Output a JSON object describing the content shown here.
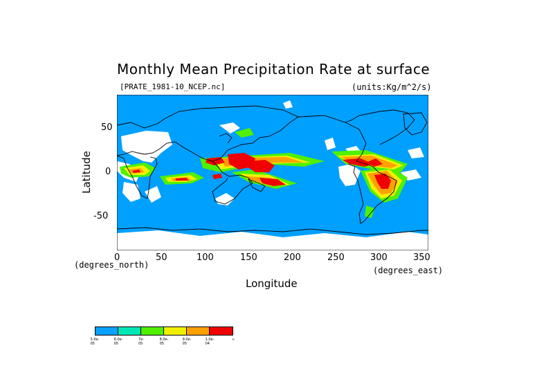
{
  "title": "Monthly Mean Precipitation Rate at surface",
  "subtitle": "[PRATE_1981-10_NCEP.nc]",
  "units": "(units:Kg/m^2/s)",
  "axes": {
    "xlabel": "Longitude",
    "ylabel": "Latitude",
    "x_unit": "(degrees_east)",
    "y_unit": "(degrees_north)",
    "x_ticks": [
      "0",
      "50",
      "100",
      "150",
      "200",
      "250",
      "300",
      "350"
    ],
    "x_tick_values": [
      0,
      50,
      100,
      150,
      200,
      250,
      300,
      350
    ],
    "y_ticks": [
      "50",
      "0",
      "-50"
    ],
    "y_tick_values": [
      50,
      0,
      -50
    ],
    "xlim": [
      0,
      360
    ],
    "ylim": [
      -90,
      90
    ]
  },
  "legend": {
    "colors": [
      "#0aa0ff",
      "#00e6b4",
      "#50f000",
      "#f0f000",
      "#ffa000",
      "#f00000"
    ],
    "labels": [
      "5.0e-05",
      "6.0e-05",
      "7e-05",
      "8.0e-05",
      "9.0e-05",
      "1.0e-04",
      "∞"
    ]
  },
  "colors": {
    "ocean_low": "#00a0ff",
    "land_missing": "#ffffff",
    "coast": "#000000"
  }
}
